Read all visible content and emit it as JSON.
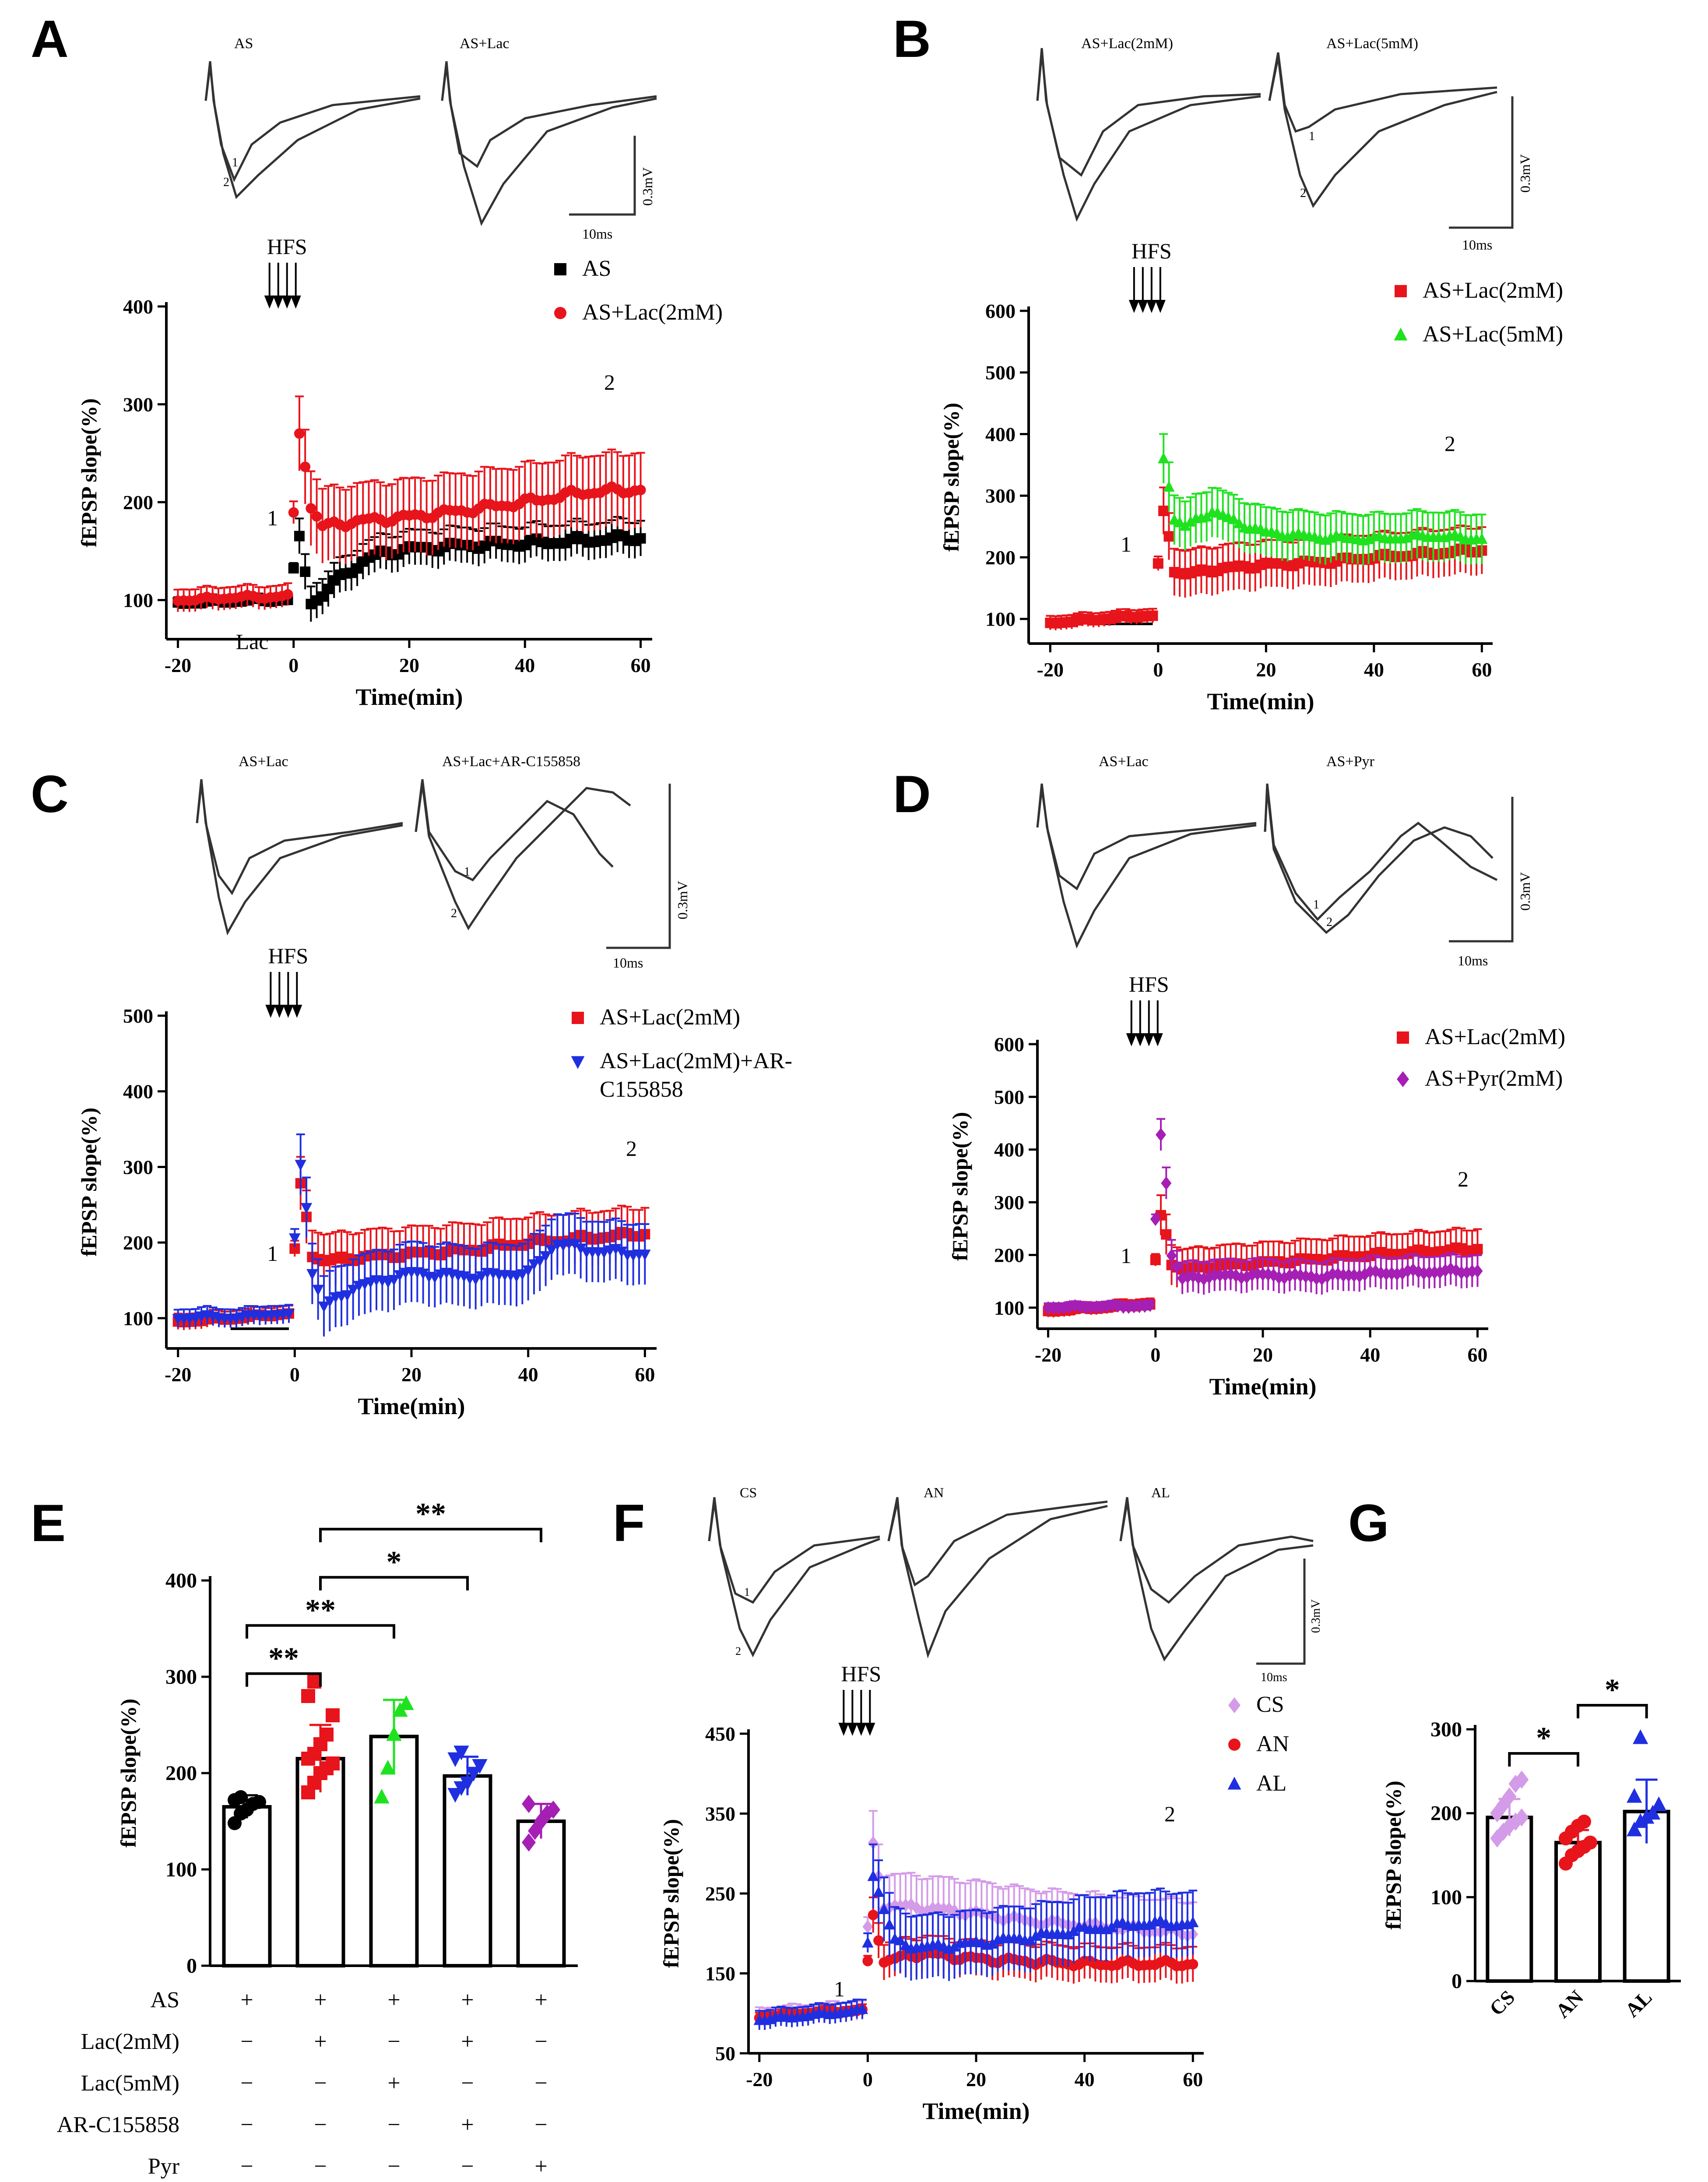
{
  "figure": {
    "panel_letters": [
      "A",
      "B",
      "C",
      "D",
      "E",
      "F",
      "G"
    ],
    "hfs_label": "HFS",
    "y_axis_label": "fEPSP slope(%)",
    "x_axis_label": "Time(min)",
    "lac_label": "Lac",
    "scale_voltage": "0.3mV",
    "scale_time": "10ms",
    "marker_1": "1",
    "marker_2": "2",
    "trace_labels": {
      "A": [
        "AS",
        "AS+Lac"
      ],
      "B": [
        "AS+Lac(2mM)",
        "AS+Lac(5mM)"
      ],
      "C": [
        "AS+Lac",
        "AS+Lac+AR-C155858"
      ],
      "D": [
        "AS+Lac",
        "AS+Pyr"
      ],
      "F": [
        "CS",
        "AN",
        "AL"
      ]
    },
    "colors": {
      "black": "#000000",
      "red": "#e8141b",
      "green": "#1fe21f",
      "blue": "#1f2fe0",
      "purple": "#a51fb5",
      "light_purple": "#d49be8"
    }
  },
  "chart_data": [
    {
      "panel": "A",
      "type": "scatter",
      "xlabel": "Time(min)",
      "ylabel": "fEPSP slope(%)",
      "xlim": [
        -22,
        62
      ],
      "ylim": [
        60,
        400
      ],
      "xticks": [
        -20,
        0,
        20,
        40,
        60
      ],
      "yticks": [
        100,
        200,
        300,
        400
      ],
      "series": [
        {
          "name": "AS",
          "color": "#000000",
          "marker": "square",
          "points": [
            [
              -20,
              97
            ],
            [
              -15,
              98
            ],
            [
              -10,
              99
            ],
            [
              -5,
              100
            ],
            [
              -1,
              100
            ],
            [
              1,
              162
            ],
            [
              2,
              130
            ],
            [
              3,
              100
            ],
            [
              5,
              103
            ],
            [
              7,
              118
            ],
            [
              10,
              132
            ],
            [
              15,
              148
            ],
            [
              20,
              152
            ],
            [
              30,
              156
            ],
            [
              40,
              158
            ],
            [
              50,
              161
            ],
            [
              60,
              164
            ]
          ],
          "err": 18
        },
        {
          "name": "AS+Lac(2mM)",
          "color": "#e8141b",
          "marker": "circle",
          "points": [
            [
              -20,
              100
            ],
            [
              -15,
              101
            ],
            [
              -10,
              103
            ],
            [
              -5,
              103
            ],
            [
              -1,
              104
            ],
            [
              1,
              272
            ],
            [
              2,
              240
            ],
            [
              3,
              195
            ],
            [
              5,
              175
            ],
            [
              10,
              180
            ],
            [
              20,
              185
            ],
            [
              30,
              192
            ],
            [
              40,
              200
            ],
            [
              50,
              210
            ],
            [
              60,
              213
            ]
          ],
          "err": 38
        }
      ]
    },
    {
      "panel": "B",
      "type": "scatter",
      "xlabel": "Time(min)",
      "ylabel": "fEPSP slope(%)",
      "xlim": [
        -24,
        62
      ],
      "ylim": [
        60,
        600
      ],
      "xticks": [
        -20,
        0,
        20,
        40,
        60
      ],
      "yticks": [
        100,
        200,
        300,
        400,
        500,
        600
      ],
      "series": [
        {
          "name": "AS+Lac(2mM)",
          "color": "#e8141b",
          "marker": "square",
          "points": [
            [
              -20,
              93
            ],
            [
              -15,
              97
            ],
            [
              -10,
              100
            ],
            [
              -5,
              104
            ],
            [
              -1,
              105
            ],
            [
              1,
              272
            ],
            [
              2,
              235
            ],
            [
              3,
              180
            ],
            [
              5,
              172
            ],
            [
              10,
              180
            ],
            [
              20,
              188
            ],
            [
              30,
              192
            ],
            [
              40,
              200
            ],
            [
              50,
              206
            ],
            [
              60,
              212
            ]
          ],
          "err": 38
        },
        {
          "name": "AS+Lac(5mM)",
          "color": "#1fe21f",
          "marker": "triangle",
          "points": [
            [
              1,
              362
            ],
            [
              2,
              318
            ],
            [
              3,
              262
            ],
            [
              5,
              250
            ],
            [
              10,
              275
            ],
            [
              15,
              255
            ],
            [
              20,
              240
            ],
            [
              30,
              232
            ],
            [
              40,
              230
            ],
            [
              50,
              235
            ],
            [
              60,
              230
            ]
          ],
          "err": 40
        }
      ]
    },
    {
      "panel": "C",
      "type": "scatter",
      "xlabel": "Time(min)",
      "ylabel": "fEPSP slope(%)",
      "xlim": [
        -22,
        62
      ],
      "ylim": [
        60,
        500
      ],
      "xticks": [
        -20,
        0,
        20,
        40,
        60
      ],
      "yticks": [
        100,
        200,
        300,
        400,
        500
      ],
      "series": [
        {
          "name": "AS+Lac(2mM)",
          "color": "#e8141b",
          "marker": "square",
          "points": [
            [
              -20,
              95
            ],
            [
              -15,
              98
            ],
            [
              -10,
              100
            ],
            [
              -5,
              104
            ],
            [
              -1,
              106
            ],
            [
              1,
              275
            ],
            [
              2,
              235
            ],
            [
              3,
              185
            ],
            [
              5,
              175
            ],
            [
              10,
              180
            ],
            [
              20,
              185
            ],
            [
              30,
              190
            ],
            [
              40,
              200
            ],
            [
              50,
              206
            ],
            [
              60,
              212
            ]
          ],
          "err": 35
        },
        {
          "name": "AS+Lac(2mM)+AR-C155858",
          "color": "#1f2fe0",
          "marker": "triangle-down",
          "points": [
            [
              -20,
              100
            ],
            [
              -15,
              102
            ],
            [
              -10,
              100
            ],
            [
              -5,
              105
            ],
            [
              -1,
              104
            ],
            [
              1,
              305
            ],
            [
              2,
              250
            ],
            [
              3,
              160
            ],
            [
              5,
              115
            ],
            [
              10,
              140
            ],
            [
              20,
              160
            ],
            [
              30,
              155
            ],
            [
              40,
              160
            ],
            [
              45,
              200
            ],
            [
              50,
              190
            ],
            [
              60,
              185
            ]
          ],
          "err": 40
        }
      ]
    },
    {
      "panel": "D",
      "type": "scatter",
      "xlabel": "Time(min)",
      "ylabel": "fEPSP slope(%)",
      "xlim": [
        -22,
        62
      ],
      "ylim": [
        60,
        600
      ],
      "xticks": [
        -20,
        0,
        20,
        40,
        60
      ],
      "yticks": [
        100,
        200,
        300,
        400,
        500,
        600
      ],
      "series": [
        {
          "name": "AS+Lac(2mM)",
          "color": "#e8141b",
          "marker": "square",
          "points": [
            [
              -20,
              93
            ],
            [
              -15,
              97
            ],
            [
              -10,
              100
            ],
            [
              -5,
              104
            ],
            [
              -1,
              106
            ],
            [
              1,
              272
            ],
            [
              2,
              240
            ],
            [
              3,
              185
            ],
            [
              5,
              172
            ],
            [
              10,
              178
            ],
            [
              20,
              185
            ],
            [
              30,
              192
            ],
            [
              40,
              200
            ],
            [
              50,
              206
            ],
            [
              60,
              212
            ]
          ],
          "err": 38
        },
        {
          "name": "AS+Pyr(2mM)",
          "color": "#a51fb5",
          "marker": "diamond",
          "points": [
            [
              -20,
              100
            ],
            [
              -10,
              102
            ],
            [
              -1,
              103
            ],
            [
              1,
              430
            ],
            [
              2,
              340
            ],
            [
              3,
              200
            ],
            [
              5,
              155
            ],
            [
              10,
              160
            ],
            [
              20,
              162
            ],
            [
              30,
              158
            ],
            [
              40,
              165
            ],
            [
              50,
              168
            ],
            [
              60,
              170
            ]
          ],
          "err": 30
        }
      ]
    },
    {
      "panel": "E",
      "type": "bar",
      "ylabel": "fEPSP slope(%)",
      "ylim": [
        0,
        400
      ],
      "yticks": [
        0,
        100,
        200,
        300,
        400
      ],
      "categories": [
        "AS",
        "AS+Lac(2mM)",
        "AS+Lac(5mM)",
        "AS+Lac(2mM)+AR-C155858",
        "AS+Pyr"
      ],
      "values": [
        165,
        215,
        238,
        197,
        150
      ],
      "sd": [
        12,
        35,
        38,
        20,
        18
      ],
      "colors": [
        "#000000",
        "#e8141b",
        "#1fe21f",
        "#1f2fe0",
        "#a51fb5"
      ],
      "markers": [
        "circle",
        "square",
        "triangle",
        "triangle-down",
        "diamond"
      ],
      "points": [
        [
          148,
          158,
          162,
          168,
          170,
          172,
          175
        ],
        [
          180,
          190,
          200,
          205,
          210,
          215,
          220,
          230,
          240,
          260,
          280,
          295
        ],
        [
          175,
          205,
          240,
          265,
          272
        ],
        [
          178,
          185,
          190,
          200,
          208,
          215,
          222
        ],
        [
          128,
          140,
          150,
          158,
          162,
          168
        ]
      ],
      "condition_rows": [
        "AS",
        "Lac(2mM)",
        "Lac(5mM)",
        "AR-C155858",
        "Pyr"
      ],
      "condition_matrix": [
        [
          "+",
          "+",
          "+",
          "+",
          "+"
        ],
        [
          "−",
          "+",
          "−",
          "+",
          "−"
        ],
        [
          "−",
          "−",
          "+",
          "−",
          "−"
        ],
        [
          "−",
          "−",
          "−",
          "+",
          "−"
        ],
        [
          "−",
          "−",
          "−",
          "−",
          "+"
        ]
      ],
      "significance": [
        {
          "from": 0,
          "to": 1,
          "label": "**"
        },
        {
          "from": 0,
          "to": 2,
          "label": "**"
        },
        {
          "from": 1,
          "to": 3,
          "label": "*"
        },
        {
          "from": 1,
          "to": 4,
          "label": "**"
        }
      ]
    },
    {
      "panel": "F",
      "type": "scatter",
      "xlabel": "Time(min)",
      "ylabel": "fEPSP slope(%)",
      "xlim": [
        -22,
        62
      ],
      "ylim": [
        50,
        450
      ],
      "xticks": [
        -20,
        0,
        20,
        40,
        60
      ],
      "yticks": [
        50,
        150,
        250,
        350,
        450
      ],
      "series": [
        {
          "name": "CS",
          "color": "#d49be8",
          "marker": "diamond",
          "points": [
            [
              -20,
              95
            ],
            [
              -10,
              100
            ],
            [
              -1,
              104
            ],
            [
              1,
              310
            ],
            [
              3,
              235
            ],
            [
              10,
              232
            ],
            [
              20,
              225
            ],
            [
              30,
              215
            ],
            [
              40,
              210
            ],
            [
              50,
              205
            ],
            [
              60,
              200
            ]
          ],
          "err": 40
        },
        {
          "name": "AN",
          "color": "#e8141b",
          "marker": "circle",
          "points": [
            [
              -20,
              95
            ],
            [
              -10,
              100
            ],
            [
              -1,
              103
            ],
            [
              1,
              225
            ],
            [
              2,
              195
            ],
            [
              3,
              165
            ],
            [
              10,
              175
            ],
            [
              20,
              168
            ],
            [
              30,
              165
            ],
            [
              40,
              162
            ],
            [
              50,
              162
            ],
            [
              60,
              162
            ]
          ],
          "err": 22
        },
        {
          "name": "AL",
          "color": "#1f2fe0",
          "marker": "triangle",
          "points": [
            [
              -20,
              92
            ],
            [
              -10,
              98
            ],
            [
              -1,
              104
            ],
            [
              1,
              275
            ],
            [
              3,
              230
            ],
            [
              5,
              190
            ],
            [
              10,
              182
            ],
            [
              20,
              188
            ],
            [
              30,
              195
            ],
            [
              40,
              205
            ],
            [
              50,
              212
            ],
            [
              60,
              212
            ]
          ],
          "err": 40
        }
      ]
    },
    {
      "panel": "G",
      "type": "bar",
      "ylabel": "fEPSP slope(%)",
      "ylim": [
        0,
        300
      ],
      "yticks": [
        0,
        100,
        200,
        300
      ],
      "categories": [
        "CS",
        "AN",
        "AL"
      ],
      "values": [
        195,
        165,
        202
      ],
      "sd": [
        22,
        15,
        38
      ],
      "colors": [
        "#d49be8",
        "#e8141b",
        "#1f2fe0"
      ],
      "markers": [
        "diamond",
        "circle",
        "triangle"
      ],
      "points": [
        [
          170,
          178,
          185,
          190,
          195,
          200,
          210,
          220,
          235,
          240
        ],
        [
          140,
          150,
          155,
          160,
          165,
          170,
          178,
          185,
          190
        ],
        [
          180,
          190,
          195,
          200,
          210,
          220,
          290
        ]
      ],
      "significance": [
        {
          "from": 0,
          "to": 1,
          "label": "*"
        },
        {
          "from": 1,
          "to": 2,
          "label": "*"
        }
      ]
    }
  ]
}
